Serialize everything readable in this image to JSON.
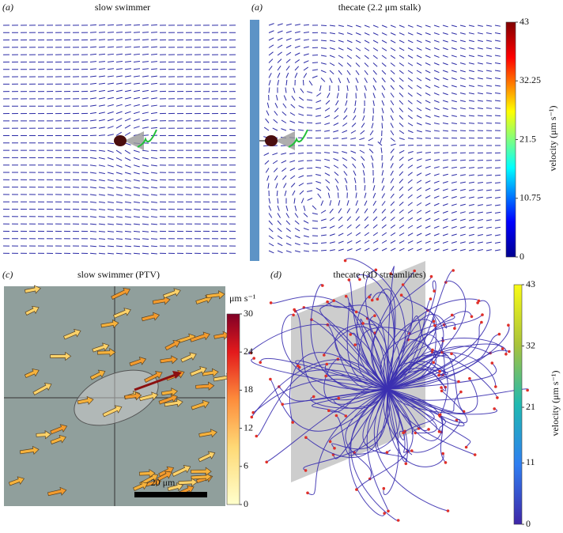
{
  "panels": [
    {
      "label": "(a)",
      "title": "slow swimmer"
    },
    {
      "label": "(a)",
      "title": "thecate (2.2 μm stalk)",
      "colorbar": {
        "label": "velocity (μm s⁻¹)",
        "lim": [
          0,
          43
        ],
        "ticks": [
          0,
          10.75,
          21.5,
          32.25,
          43
        ]
      }
    },
    {
      "label": "(c)",
      "title": "slow swimmer (PTV)",
      "scale_bar": "20 μm",
      "colorbar": {
        "label": "μm s⁻¹",
        "lim": [
          0,
          30
        ],
        "ticks": [
          0,
          6,
          12,
          18,
          24,
          30
        ]
      }
    },
    {
      "label": "(d)",
      "title": "thecate (3D streamlines)",
      "colorbar": {
        "label": "velocity (μm s⁻¹)",
        "lim": [
          0,
          43
        ],
        "ticks": [
          0,
          11,
          21,
          32,
          43
        ]
      }
    }
  ]
}
